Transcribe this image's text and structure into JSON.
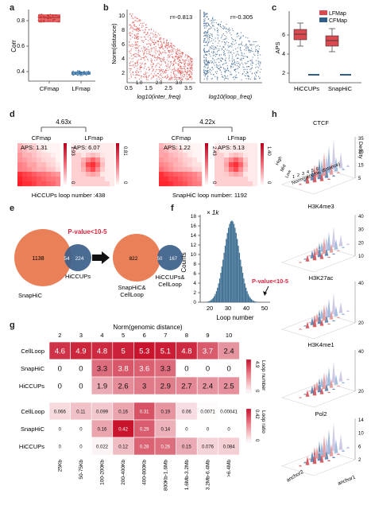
{
  "panels": {
    "a": "a",
    "b": "b",
    "c": "c",
    "d": "d",
    "e": "e",
    "f": "f",
    "g": "g",
    "h": "h"
  },
  "panel_a": {
    "ylabel": "Corr",
    "yticks": [
      "0.8",
      "0.6",
      "0.4"
    ],
    "categories": [
      "CFmap",
      "LFmap"
    ],
    "colors": {
      "CFmap": "#e04b4b",
      "LFmap": "#4c86b8"
    }
  },
  "panel_b": {
    "ylabel": "Norm(distance)",
    "yticks": [
      "10",
      "8",
      "6",
      "4",
      "2"
    ],
    "left_xticks": [
      "0.5",
      "1.5",
      "2.5",
      "3.5"
    ],
    "left_xticks_mid": [
      "1.0",
      "2.0",
      "3.0"
    ],
    "left_xlabel": "log10(inter_freq)",
    "right_xlabel": "log10(loop_freq)",
    "left_r": "r=-0.813",
    "right_r": "r=-0.305"
  },
  "panel_c": {
    "ylabel": "APS",
    "yticks": [
      "6",
      "4",
      "2"
    ],
    "categories": [
      "HiCCUPs",
      "SnapHiC"
    ],
    "legend": [
      "LFMap",
      "CFMap"
    ],
    "colors": {
      "LFMap": "#d9494f",
      "CFMap": "#2f5f87"
    }
  },
  "panel_d": {
    "left": {
      "fold": "4.63x",
      "cf": "CFmap",
      "lf": "LFmap",
      "aps_cf": "APS: 1.31",
      "aps_lf": "APS: 6.07",
      "cb_cf": "1.93",
      "cb_lf": "0.81",
      "footer": "HiCCUPs loop number :438"
    },
    "right": {
      "fold": "4.22x",
      "cf": "CFmap",
      "lf": "LFmap",
      "aps_cf": "APS: 1.22",
      "aps_lf": "APS: 5.13",
      "cb_cf": "2.43",
      "cb_lf": "1.40",
      "footer": "SnapHiC loop number: 1192"
    },
    "cb_zero": "0"
  },
  "panel_e": {
    "pvalue": "P-value<10-5",
    "left": {
      "a_only": "1138",
      "overlap": "54",
      "b_only": "224",
      "a_label": "SnapHiC",
      "b_label": "HiCCUPs"
    },
    "right": {
      "a_only": "822",
      "overlap": "50",
      "b_only": "167",
      "a_label": "SnapHiC& CellLoop",
      "b_label": "HiCCUPs& CellLoop"
    }
  },
  "panel_f": {
    "ylabel": "Counts",
    "xlabel": "Loop number",
    "multiplier": "× 1k",
    "yticks": [
      "18",
      "16",
      "14",
      "12",
      "10",
      "8",
      "6",
      "4",
      "2",
      "0"
    ],
    "xticks": [
      "20",
      "30",
      "40",
      "50"
    ],
    "pvalue": "P-value<10-5",
    "bar_color": "#3f6f93"
  },
  "panel_g": {
    "title": "Norm(genomic distance)",
    "columns": [
      "2",
      "3",
      "4",
      "5",
      "6",
      "7",
      "8",
      "9",
      "10"
    ],
    "rows_top": [
      "CellLoop",
      "SnapHiC",
      "HiCCUPs"
    ],
    "values_top": [
      [
        "4.6",
        "4.9",
        "4.8",
        "5",
        "5.3",
        "5.1",
        "4.8",
        "3.7",
        "2.4"
      ],
      [
        "0",
        "0",
        "3.3",
        "3.8",
        "3.6",
        "3.3",
        "0",
        "0",
        "0"
      ],
      [
        "0",
        "0",
        "1.9",
        "2.6",
        "3",
        "2.9",
        "2.7",
        "2.4",
        "2.5"
      ]
    ],
    "cb_top": {
      "label": "Loop number",
      "max": "4.9",
      "min": "0"
    },
    "rows_bottom": [
      "CellLoop",
      "SnapHiC",
      "HiCCUPs"
    ],
    "values_bottom": [
      [
        "0.066",
        "0.11",
        "0.099",
        "0.16",
        "0.31",
        "0.19",
        "0.06",
        "0.0071",
        "0.00041"
      ],
      [
        "0",
        "0",
        "0.16",
        "0.42",
        "0.29",
        "0.14",
        "0",
        "0",
        "0"
      ],
      [
        "0",
        "0",
        "0.022",
        "0.12",
        "0.28",
        "0.26",
        "0.15",
        "0.076",
        "0.084"
      ]
    ],
    "cb_bottom": {
      "label": "Loop ratio",
      "max": "0.42",
      "min": "0"
    },
    "xticks": [
      "25Kb",
      "50-75Kb",
      "100-200Kb",
      "200-400Kb",
      "400-800Kb",
      "800Kb-1.6Mb",
      "1.6Mb-3.2Mb",
      "3.2Mb-6.4Mb",
      ">6.4Mb"
    ]
  },
  "panel_h": {
    "marks": [
      {
        "title": "CTCF",
        "zmax": [
          "35",
          "25",
          "15",
          "5"
        ]
      },
      {
        "title": "H3K4me3",
        "zmax": [
          "40",
          "30",
          "20",
          "10"
        ]
      },
      {
        "title": "H3K27ac",
        "zmax": [
          "40",
          "20"
        ]
      },
      {
        "title": "H3K4me1",
        "zmax": [
          "40",
          "20"
        ]
      },
      {
        "title": "Pol2",
        "zmax": [
          "14",
          "10",
          "6",
          "2"
        ]
      }
    ],
    "zlabel": "Density",
    "xlabel": "Norm(genomic distance)",
    "xticks": [
      "1",
      "2",
      "3",
      "4",
      "5",
      "6"
    ],
    "ylabels": [
      "High",
      "Mid",
      "Low"
    ],
    "anchor1": "anchor1",
    "anchor2": "anchor2"
  }
}
